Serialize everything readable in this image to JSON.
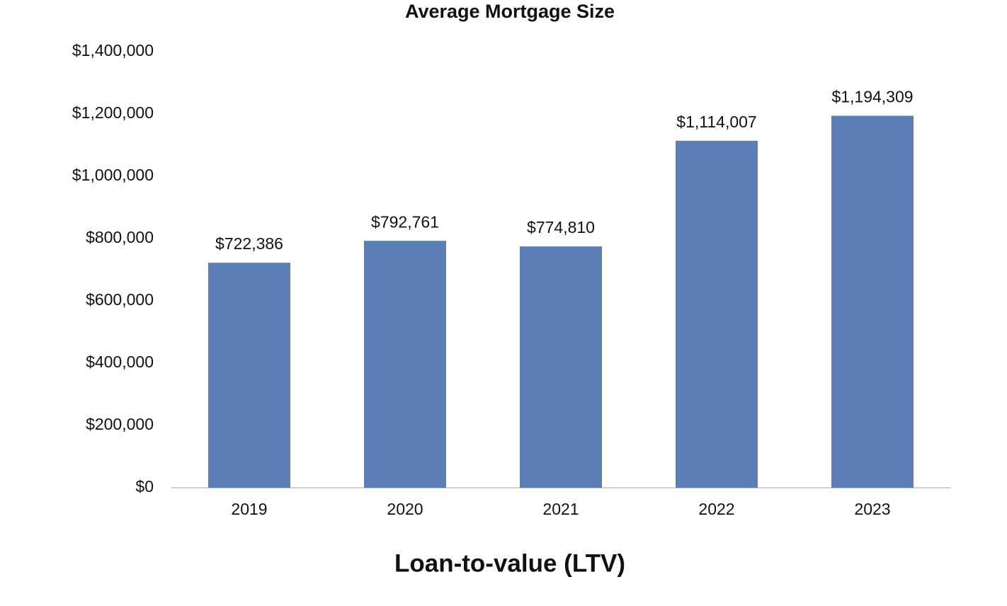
{
  "chart_data": {
    "type": "bar",
    "title": "Average Mortgage Size",
    "x_label": "Loan-to-value (LTV)",
    "categories": [
      "2019",
      "2020",
      "2021",
      "2022",
      "2023"
    ],
    "values": [
      722386,
      792761,
      774810,
      1114007,
      1194309
    ],
    "value_labels": [
      "$722,386",
      "$792,761",
      "$774,810",
      "$1,114,007",
      "$1,194,309"
    ],
    "color": "#5b7fb5",
    "ylim": [
      0,
      1400000
    ],
    "yticks": [
      {
        "value": 0,
        "label": "$0"
      },
      {
        "value": 200000,
        "label": "$200,000"
      },
      {
        "value": 400000,
        "label": "$400,000"
      },
      {
        "value": 600000,
        "label": "$600,000"
      },
      {
        "value": 800000,
        "label": "$800,000"
      },
      {
        "value": 1000000,
        "label": "$1,000,000"
      },
      {
        "value": 1200000,
        "label": "$1,200,000"
      },
      {
        "value": 1400000,
        "label": "$1,400,000"
      }
    ],
    "grid": false
  }
}
